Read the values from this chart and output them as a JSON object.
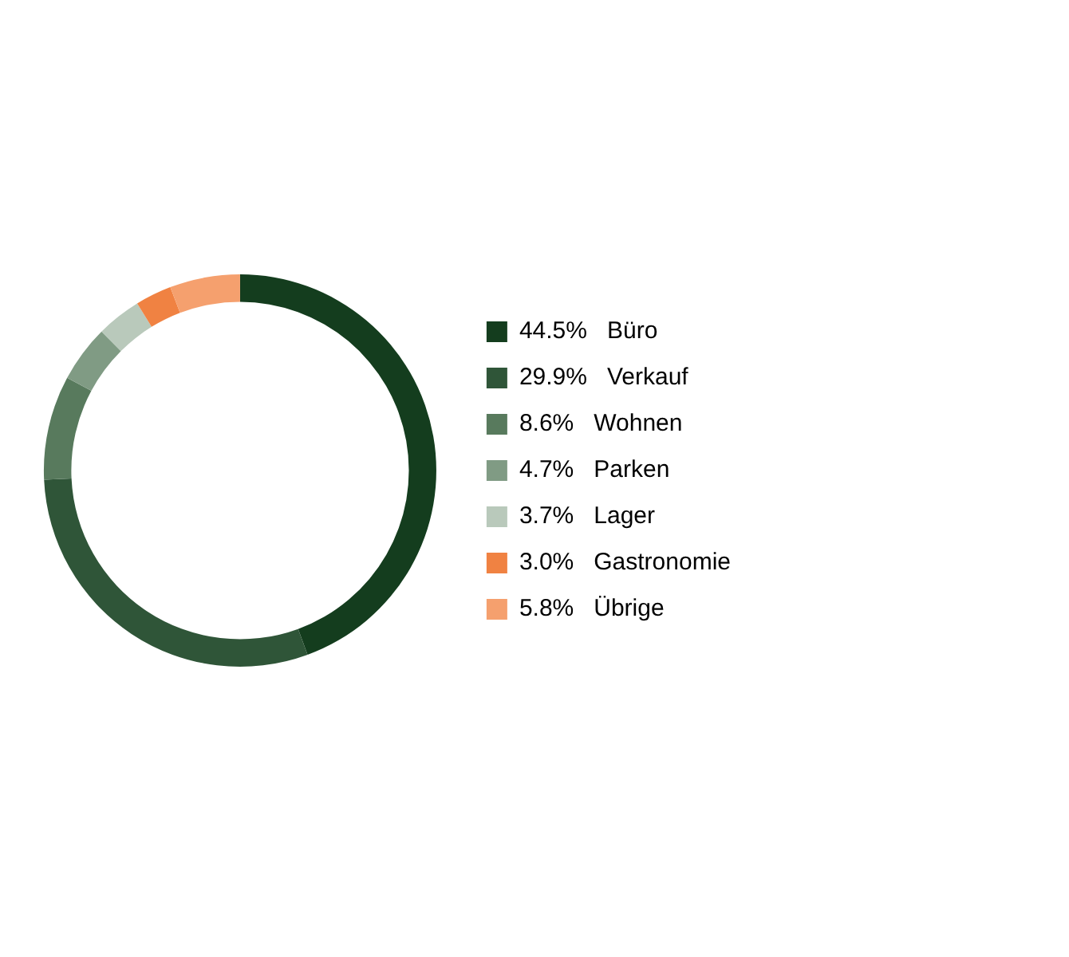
{
  "chart_data": {
    "type": "donut",
    "categories": [
      "Büro",
      "Verkauf",
      "Wohnen",
      "Parken",
      "Lager",
      "Gastronomie",
      "Übrige"
    ],
    "values": [
      44.5,
      29.9,
      8.6,
      4.7,
      3.7,
      3.0,
      5.8
    ],
    "value_labels": [
      "44.5%",
      "29.9%",
      "8.6%",
      "4.7%",
      "3.7%",
      "3.0%",
      "5.8%"
    ],
    "colors": [
      "#143d1e",
      "#2f5538",
      "#587a5d",
      "#809b84",
      "#b9c9bb",
      "#f08242",
      "#f5a06e"
    ],
    "legend": "right"
  }
}
